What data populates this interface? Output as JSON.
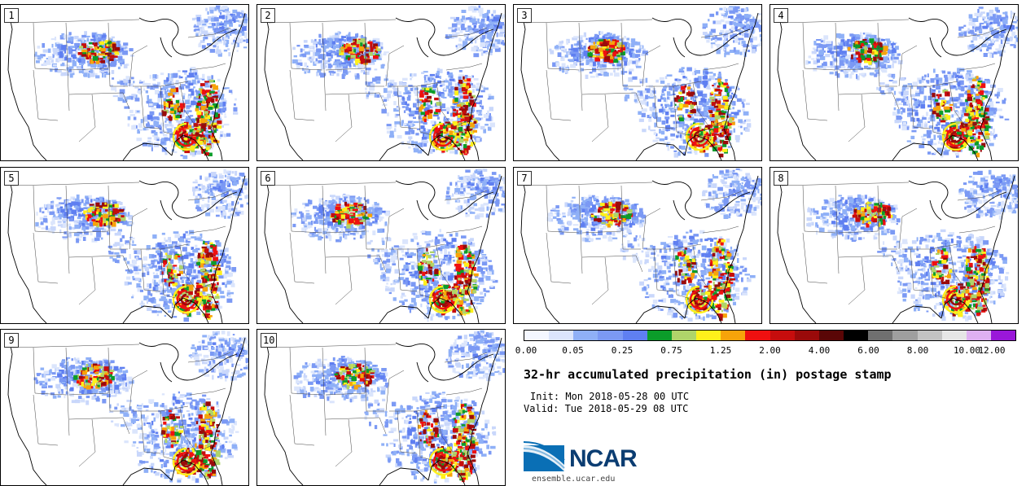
{
  "panels": [
    "1",
    "2",
    "3",
    "4",
    "5",
    "6",
    "7",
    "8",
    "9",
    "10"
  ],
  "colorbar": {
    "colors": [
      "#f4f7ff",
      "#dbe5fc",
      "#8fb0f7",
      "#7b99f4",
      "#5f7ff1",
      "#0b9c2a",
      "#afd46a",
      "#fff01b",
      "#f7a30a",
      "#ef1010",
      "#c60d0d",
      "#9a0a0a",
      "#5a0606",
      "#000000",
      "#707070",
      "#9f9f9f",
      "#c3c3c3",
      "#e6e6e6",
      "#dfb0f2",
      "#9a17d9"
    ],
    "ticks": [
      "0.00",
      "0.05",
      "0.25",
      "0.75",
      "1.25",
      "2.00",
      "4.00",
      "6.00",
      "8.00",
      "10.00",
      "12.00"
    ]
  },
  "title": "32-hr accumulated precipitation (in) postage stamp",
  "init": "Init: Mon 2018-05-28 00 UTC",
  "valid": "Valid: Tue 2018-05-29 08 UTC",
  "logo": {
    "name": "NCAR",
    "url": "ensemble.ucar.edu"
  }
}
